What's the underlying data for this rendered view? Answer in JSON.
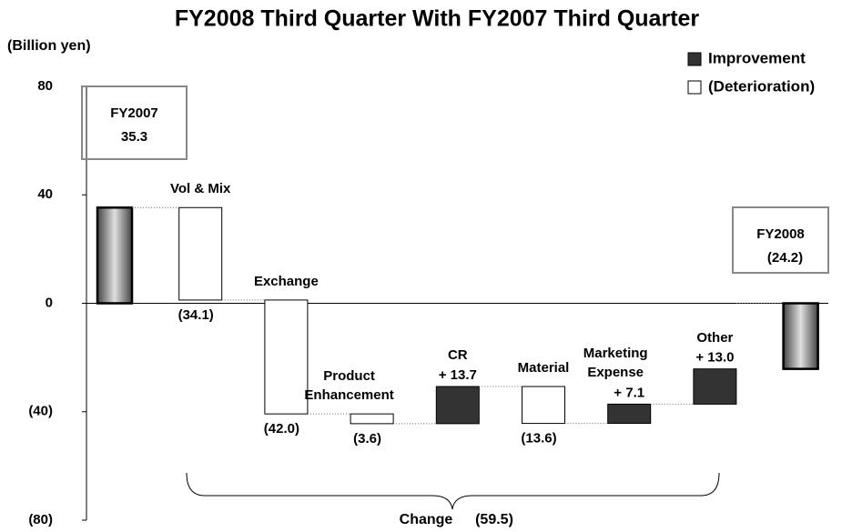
{
  "chart_data": {
    "type": "waterfall",
    "title": "FY2008 Third Quarter With FY2007 Third Quarter",
    "y_axis_label": "(Billion yen)",
    "categories": [
      "FY2007",
      "Vol & Mix",
      "Exchange",
      "Product Enhancement",
      "CR",
      "Material",
      "Marketing Expense",
      "Other",
      "FY2008"
    ],
    "values": [
      35.3,
      -34.1,
      -42.0,
      -3.6,
      13.7,
      -13.6,
      7.1,
      13.0,
      -24.2
    ],
    "value_labels": [
      "35.3",
      "(34.1)",
      "(42.0)",
      "(3.6)",
      "+ 13.7",
      "(13.6)",
      "+ 7.1",
      "+ 13.0",
      "(24.2)"
    ],
    "measures": [
      "total",
      "relative",
      "relative",
      "relative",
      "relative",
      "relative",
      "relative",
      "relative",
      "total"
    ],
    "legend": [
      {
        "name": "Improvement",
        "color": "#333333"
      },
      {
        "name": "(Deterioration)",
        "color": "#ffffff"
      }
    ],
    "legend_position": "upper right",
    "change_label": "Change",
    "change_value_label": "(59.5)",
    "ylim": [
      -80,
      80
    ],
    "yticks": [
      {
        "value": -80,
        "label": "(80)"
      },
      {
        "value": -40,
        "label": "(40)"
      },
      0,
      40,
      80
    ]
  }
}
